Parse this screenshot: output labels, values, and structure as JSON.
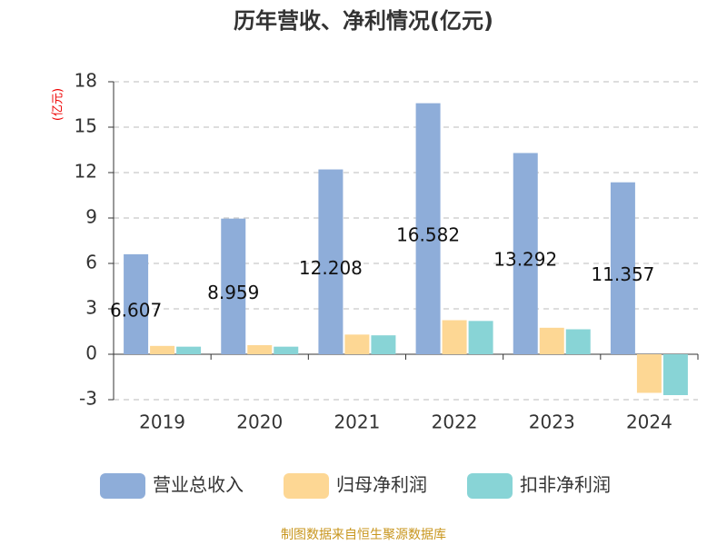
{
  "chart_data": {
    "type": "bar",
    "title": "历年营收、净利情况(亿元)",
    "y_label": "(亿元)",
    "categories": [
      "2019",
      "2020",
      "2021",
      "2022",
      "2023",
      "2024"
    ],
    "series": [
      {
        "name": "营业总收入",
        "color": "#8eadd9",
        "values": [
          6.607,
          8.959,
          12.208,
          16.582,
          13.292,
          11.357
        ],
        "show_labels": true
      },
      {
        "name": "归母净利润",
        "color": "#fdd794",
        "values": [
          0.55,
          0.6,
          1.3,
          2.25,
          1.75,
          -2.55
        ]
      },
      {
        "name": "扣非净利润",
        "color": "#88d4d6",
        "values": [
          0.5,
          0.5,
          1.25,
          2.2,
          1.65,
          -2.7
        ]
      }
    ],
    "ylim": [
      -3,
      18
    ],
    "yticks": [
      -3,
      0,
      3,
      6,
      9,
      12,
      15,
      18
    ],
    "grid": true,
    "source": "制图数据来自恒生聚源数据库"
  }
}
